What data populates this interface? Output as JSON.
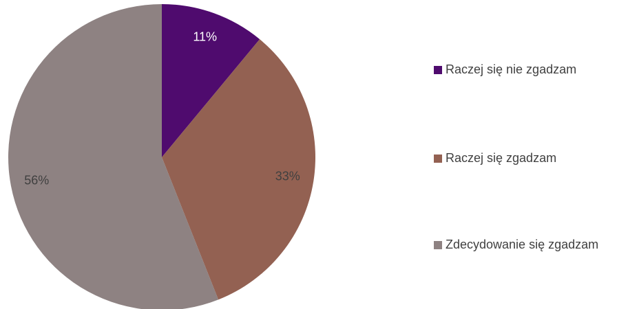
{
  "chart_data": {
    "type": "pie",
    "categories": [
      "Raczej się nie zgadzam",
      "Raczej się zgadzam",
      "Zdecydowanie się zgadzam"
    ],
    "values": [
      11,
      33,
      56
    ],
    "value_labels": [
      "11%",
      "33%",
      "56%"
    ],
    "colors": [
      "#4f0b6e",
      "#936152",
      "#8e8282"
    ],
    "legend": "right"
  }
}
